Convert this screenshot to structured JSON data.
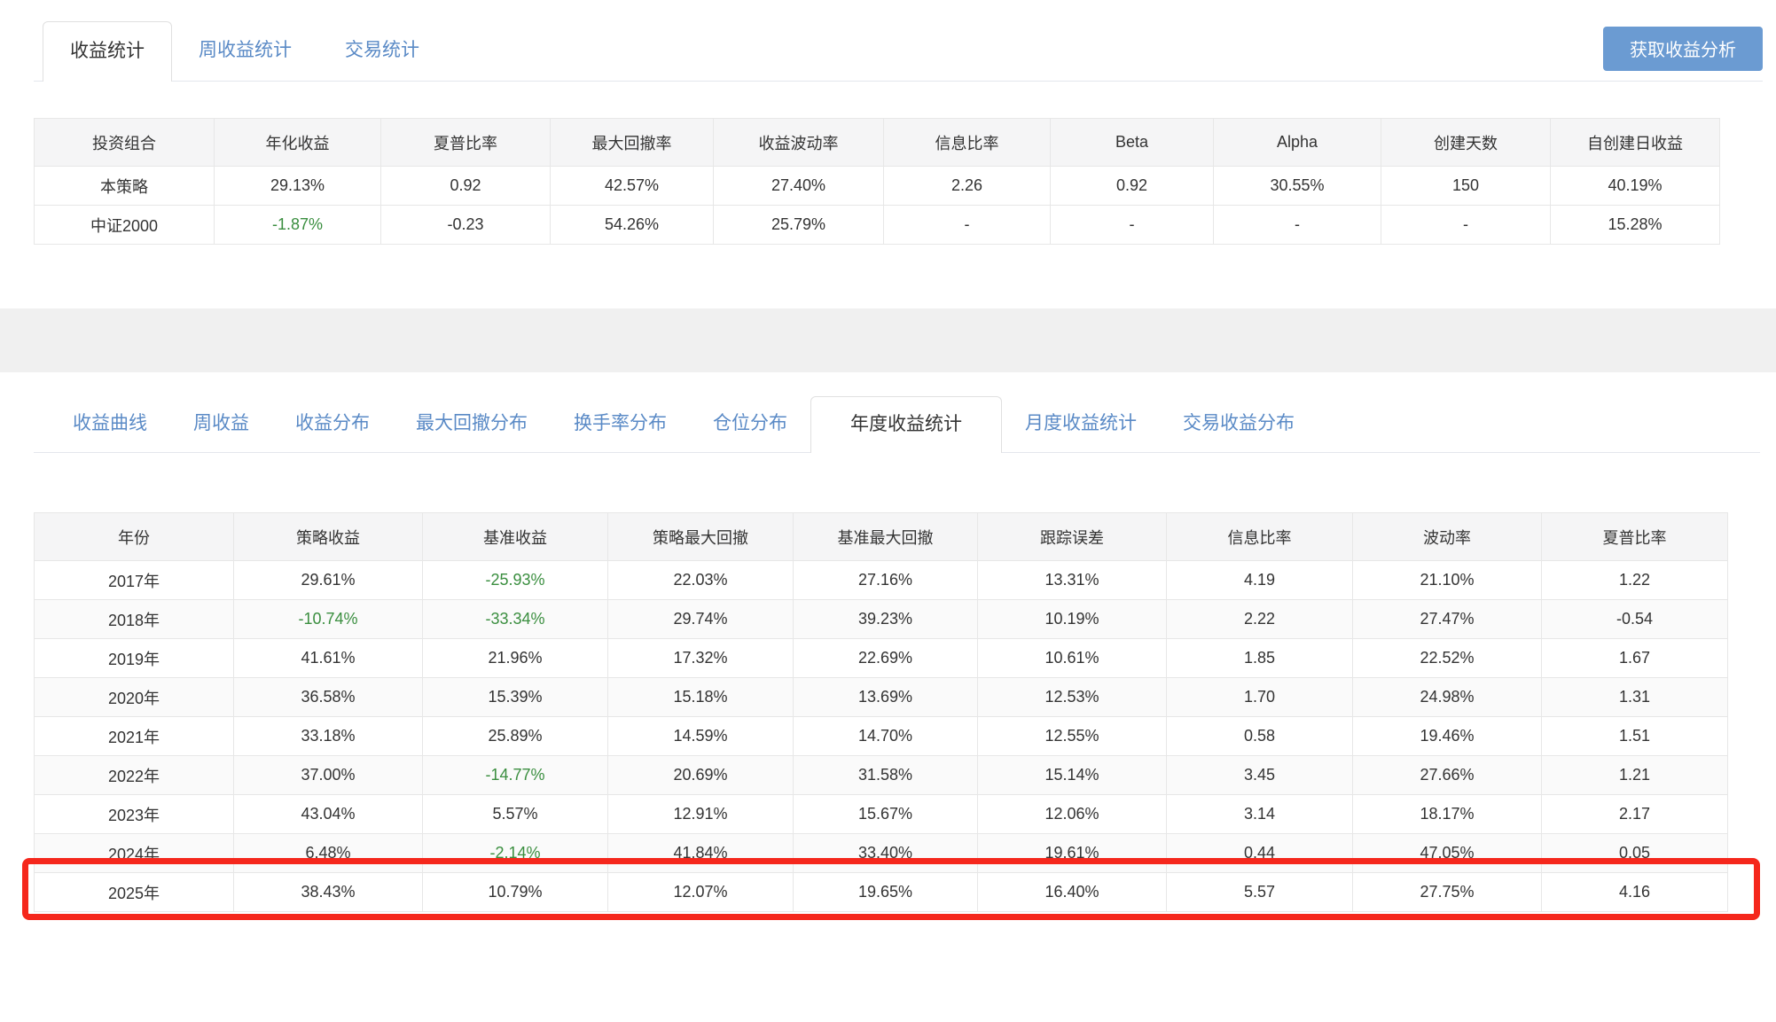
{
  "colors": {
    "tab_blue": "#5a8ac6",
    "active_tab_text": "#333333",
    "button_bg": "#6b9bd2",
    "button_text": "#ffffff",
    "negative_green": "#3a8e3f",
    "header_bg": "#f5f5f6",
    "table_border": "#e7e7e7",
    "stripe_bg": "#fafafa",
    "section_band": "#f0f0f0",
    "red_annotation": "#f5271c"
  },
  "top_tabs": {
    "items": [
      {
        "key": "income-stats",
        "label": "收益统计",
        "active": true
      },
      {
        "key": "weekly-income-stats",
        "label": "周收益统计",
        "active": false
      },
      {
        "key": "trade-stats",
        "label": "交易统计",
        "active": false
      }
    ],
    "action_button": "获取收益分析"
  },
  "summary_table": {
    "columns": [
      "投资组合",
      "年化收益",
      "夏普比率",
      "最大回撤率",
      "收益波动率",
      "信息比率",
      "Beta",
      "Alpha",
      "创建天数",
      "自创建日收益"
    ],
    "rows": [
      {
        "cells": [
          "本策略",
          "29.13%",
          "0.92",
          "42.57%",
          "27.40%",
          "2.26",
          "0.92",
          "30.55%",
          "150",
          "40.19%"
        ],
        "green": []
      },
      {
        "cells": [
          "中证2000",
          "-1.87%",
          "-0.23",
          "54.26%",
          "25.79%",
          "-",
          "-",
          "-",
          "-",
          "15.28%"
        ],
        "green": [
          1
        ]
      }
    ]
  },
  "sub_tabs": {
    "items": [
      {
        "key": "income-curve",
        "label": "收益曲线",
        "active": false
      },
      {
        "key": "weekly-income",
        "label": "周收益",
        "active": false
      },
      {
        "key": "income-distribution",
        "label": "收益分布",
        "active": false
      },
      {
        "key": "max-drawdown-distribution",
        "label": "最大回撤分布",
        "active": false
      },
      {
        "key": "turnover-distribution",
        "label": "换手率分布",
        "active": false
      },
      {
        "key": "position-distribution",
        "label": "仓位分布",
        "active": false
      },
      {
        "key": "annual-income-stats",
        "label": "年度收益统计",
        "active": true
      },
      {
        "key": "monthly-income-stats",
        "label": "月度收益统计",
        "active": false
      },
      {
        "key": "trade-income-distribution",
        "label": "交易收益分布",
        "active": false
      }
    ]
  },
  "annual_table": {
    "columns": [
      "年份",
      "策略收益",
      "基准收益",
      "策略最大回撤",
      "基准最大回撤",
      "跟踪误差",
      "信息比率",
      "波动率",
      "夏普比率"
    ],
    "rows": [
      {
        "cells": [
          "2017年",
          "29.61%",
          "-25.93%",
          "22.03%",
          "27.16%",
          "13.31%",
          "4.19",
          "21.10%",
          "1.22"
        ],
        "green": [
          2
        ]
      },
      {
        "cells": [
          "2018年",
          "-10.74%",
          "-33.34%",
          "29.74%",
          "39.23%",
          "10.19%",
          "2.22",
          "27.47%",
          "-0.54"
        ],
        "green": [
          1,
          2
        ]
      },
      {
        "cells": [
          "2019年",
          "41.61%",
          "21.96%",
          "17.32%",
          "22.69%",
          "10.61%",
          "1.85",
          "22.52%",
          "1.67"
        ],
        "green": []
      },
      {
        "cells": [
          "2020年",
          "36.58%",
          "15.39%",
          "15.18%",
          "13.69%",
          "12.53%",
          "1.70",
          "24.98%",
          "1.31"
        ],
        "green": []
      },
      {
        "cells": [
          "2021年",
          "33.18%",
          "25.89%",
          "14.59%",
          "14.70%",
          "12.55%",
          "0.58",
          "19.46%",
          "1.51"
        ],
        "green": []
      },
      {
        "cells": [
          "2022年",
          "37.00%",
          "-14.77%",
          "20.69%",
          "31.58%",
          "15.14%",
          "3.45",
          "27.66%",
          "1.21"
        ],
        "green": [
          2
        ]
      },
      {
        "cells": [
          "2023年",
          "43.04%",
          "5.57%",
          "12.91%",
          "15.67%",
          "12.06%",
          "3.14",
          "18.17%",
          "2.17"
        ],
        "green": []
      },
      {
        "cells": [
          "2024年",
          "6.48%",
          "-2.14%",
          "41.84%",
          "33.40%",
          "19.61%",
          "0.44",
          "47.05%",
          "0.05"
        ],
        "green": [
          2
        ]
      },
      {
        "cells": [
          "2025年",
          "38.43%",
          "10.79%",
          "12.07%",
          "19.65%",
          "16.40%",
          "5.57",
          "27.75%",
          "4.16"
        ],
        "green": [],
        "highlighted": true
      }
    ]
  },
  "annotation": {
    "shape": "rectangle",
    "highlighted_row": "2025年"
  }
}
